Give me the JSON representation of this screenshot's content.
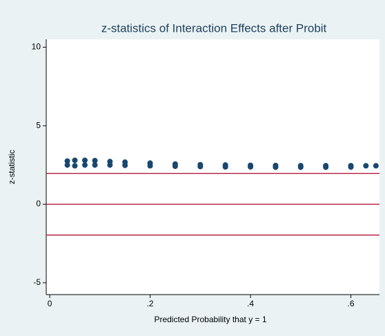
{
  "chart_data": {
    "type": "scatter",
    "title": "z-statistics of Interaction Effects after Probit",
    "x_label": "Predicted Probability that y = 1",
    "y_label": "z-statistic",
    "series": [
      {
        "color": "#1a476f",
        "x": [
          0.035,
          0.035,
          0.05,
          0.05,
          0.07,
          0.07,
          0.09,
          0.09,
          0.12,
          0.12,
          0.15,
          0.15,
          0.2,
          0.2,
          0.25,
          0.25,
          0.3,
          0.3,
          0.35,
          0.35,
          0.4,
          0.4,
          0.45,
          0.45,
          0.5,
          0.5,
          0.55,
          0.55,
          0.6,
          0.6,
          0.63,
          0.65
        ],
        "values": [
          2.75,
          2.5,
          2.8,
          2.45,
          2.8,
          2.5,
          2.78,
          2.5,
          2.72,
          2.5,
          2.68,
          2.48,
          2.62,
          2.45,
          2.56,
          2.42,
          2.52,
          2.4,
          2.5,
          2.38,
          2.48,
          2.38,
          2.47,
          2.36,
          2.46,
          2.36,
          2.46,
          2.36,
          2.46,
          2.37,
          2.45,
          2.45
        ]
      }
    ],
    "reference_lines": [
      1.96,
      0,
      -1.96
    ],
    "reference_color": "#b0183b",
    "xlim": [
      -0.007,
      0.657
    ],
    "ylim": [
      -5.75,
      10.5
    ],
    "xticks": [
      0,
      {
        "value": 0.2,
        "label": ".2"
      },
      {
        "value": 0.4,
        "label": ".4"
      },
      {
        "value": 0.6,
        "label": ".6"
      }
    ],
    "yticks": [
      -5,
      0,
      5,
      10
    ]
  }
}
